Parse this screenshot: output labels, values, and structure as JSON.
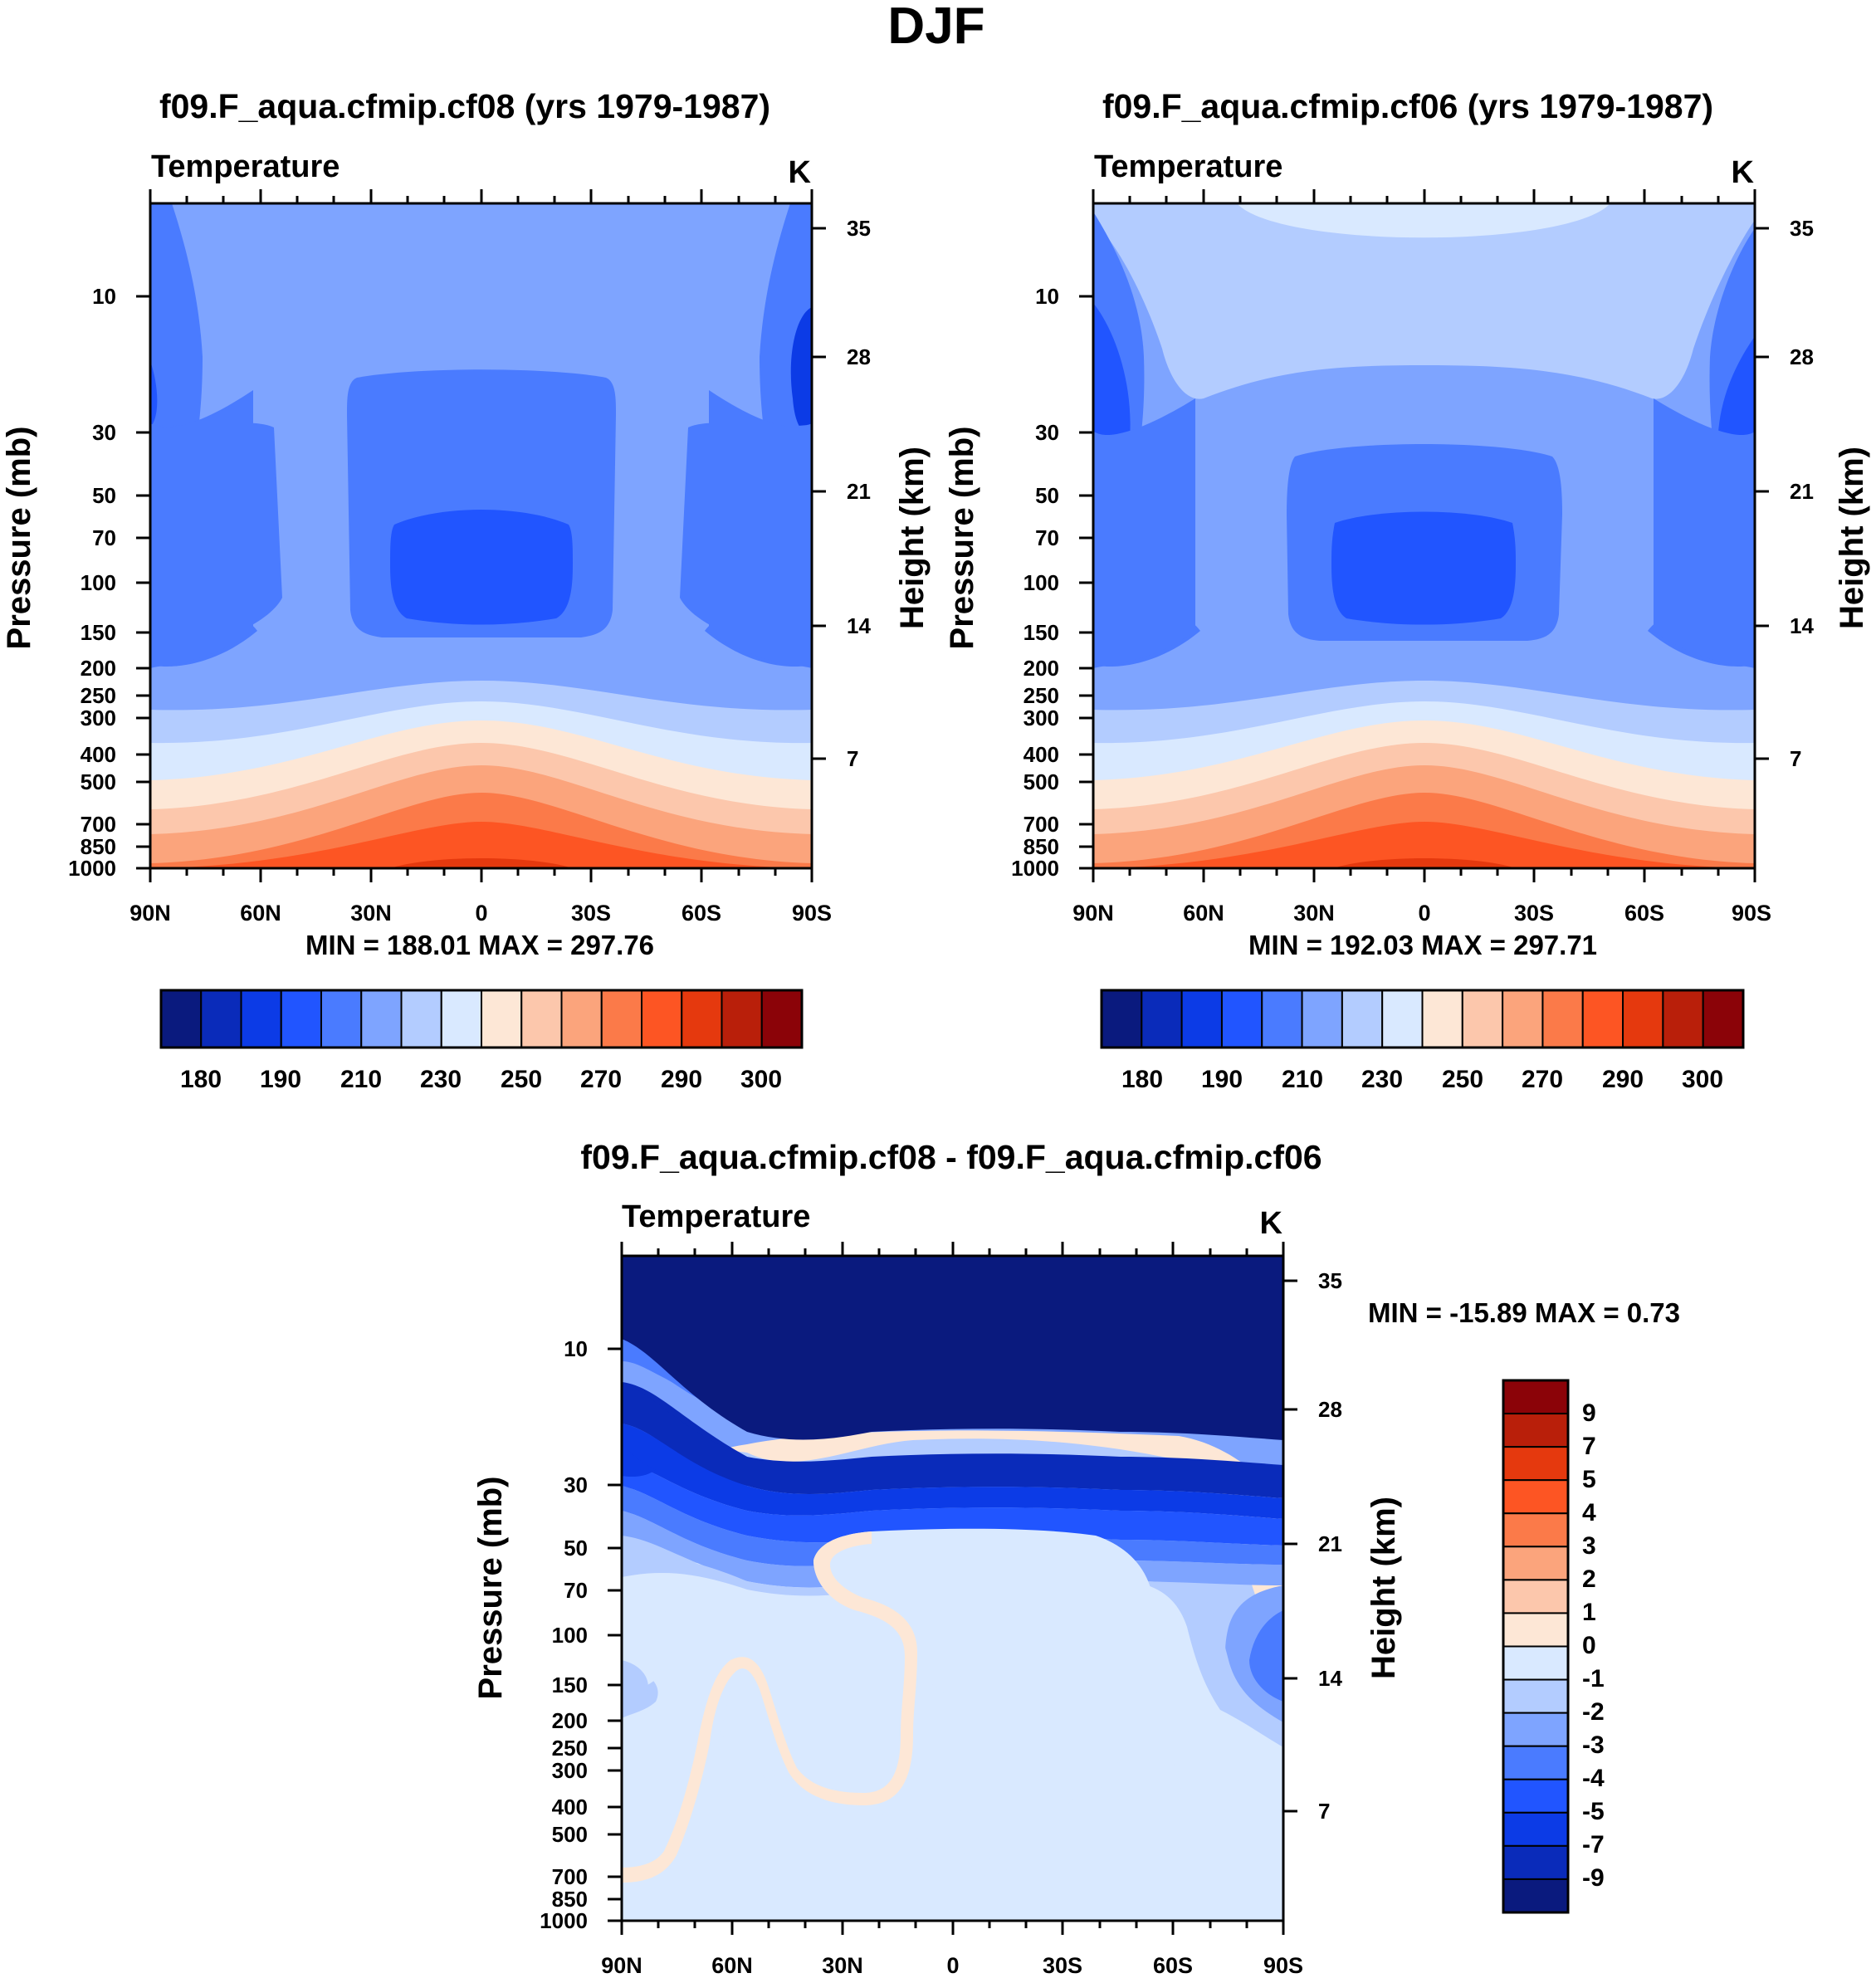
{
  "figure": {
    "title": "DJF"
  },
  "panels": [
    {
      "title": "f09.F_aqua.cfmip.cf08 (yrs 1979-1987)",
      "variable": "Temperature",
      "units": "K",
      "ylabel": "Pressure (mb)",
      "ylabel_right": "Height (km)",
      "minmax": "MIN = 188.01   MAX = 297.76",
      "colorbar_labels": [
        "180",
        "190",
        "210",
        "230",
        "250",
        "270",
        "290",
        "300"
      ]
    },
    {
      "title": "f09.F_aqua.cfmip.cf06 (yrs 1979-1987)",
      "variable": "Temperature",
      "units": "K",
      "ylabel": "Pressure (mb)",
      "ylabel_right": "Height (km)",
      "minmax": "MIN = 192.03   MAX = 297.71",
      "colorbar_labels": [
        "180",
        "190",
        "210",
        "230",
        "250",
        "270",
        "290",
        "300"
      ]
    },
    {
      "title": "f09.F_aqua.cfmip.cf08 - f09.F_aqua.cfmip.cf06",
      "variable": "Temperature",
      "units": "K",
      "ylabel": "Pressure (mb)",
      "ylabel_right": "Height (km)",
      "minmax": "MIN = -15.89   MAX =    0.73",
      "colorbar_labels": [
        "9",
        "7",
        "5",
        "4",
        "3",
        "2",
        "1",
        "0",
        "-1",
        "-2",
        "-3",
        "-4",
        "-5",
        "-7",
        "-9"
      ]
    }
  ],
  "chart_data": [
    {
      "type": "heatmap",
      "title": "f09.F_aqua.cfmip.cf08 (yrs 1979-1987)",
      "variable": "Temperature",
      "units": "K",
      "xlabel": "",
      "ylabel": "Pressure (mb)",
      "ylabel_right": "Height (km)",
      "xticks": [
        "90N",
        "60N",
        "30N",
        "0",
        "30S",
        "60S",
        "90S"
      ],
      "yticks": [
        "10",
        "30",
        "50",
        "70",
        "100",
        "150",
        "200",
        "250",
        "300",
        "400",
        "500",
        "700",
        "850",
        "1000"
      ],
      "yticks_right": [
        "35",
        "28",
        "21",
        "14",
        "7"
      ],
      "xlim": [
        90,
        -90
      ],
      "ylim": [
        1000,
        3.5
      ],
      "min": 188.01,
      "max": 297.76,
      "contour_levels": [
        180,
        185,
        190,
        200,
        210,
        220,
        230,
        240,
        250,
        260,
        270,
        280,
        290,
        295,
        300
      ],
      "colorbar_colors": [
        "#0a1a7e",
        "#0a2bba",
        "#0c3be6",
        "#2155ff",
        "#4a7bff",
        "#7ea4ff",
        "#b3ccff",
        "#d9e9ff",
        "#fde7d6",
        "#fcc7ac",
        "#fba47c",
        "#fb7a49",
        "#fd5523",
        "#e5390e",
        "#b91f0a",
        "#8b0308"
      ]
    },
    {
      "type": "heatmap",
      "title": "f09.F_aqua.cfmip.cf06 (yrs 1979-1987)",
      "variable": "Temperature",
      "units": "K",
      "xlabel": "",
      "ylabel": "Pressure (mb)",
      "ylabel_right": "Height (km)",
      "xticks": [
        "90N",
        "60N",
        "30N",
        "0",
        "30S",
        "60S",
        "90S"
      ],
      "yticks": [
        "10",
        "30",
        "50",
        "70",
        "100",
        "150",
        "200",
        "250",
        "300",
        "400",
        "500",
        "700",
        "850",
        "1000"
      ],
      "yticks_right": [
        "35",
        "28",
        "21",
        "14",
        "7"
      ],
      "xlim": [
        90,
        -90
      ],
      "ylim": [
        1000,
        3.5
      ],
      "min": 192.03,
      "max": 297.71,
      "contour_levels": [
        180,
        185,
        190,
        200,
        210,
        220,
        230,
        240,
        250,
        260,
        270,
        280,
        290,
        295,
        300
      ],
      "colorbar_colors": [
        "#0a1a7e",
        "#0a2bba",
        "#0c3be6",
        "#2155ff",
        "#4a7bff",
        "#7ea4ff",
        "#b3ccff",
        "#d9e9ff",
        "#fde7d6",
        "#fcc7ac",
        "#fba47c",
        "#fb7a49",
        "#fd5523",
        "#e5390e",
        "#b91f0a",
        "#8b0308"
      ]
    },
    {
      "type": "heatmap",
      "title": "f09.F_aqua.cfmip.cf08 - f09.F_aqua.cfmip.cf06",
      "variable": "Temperature",
      "units": "K",
      "xlabel": "",
      "ylabel": "Pressure (mb)",
      "ylabel_right": "Height (km)",
      "xticks": [
        "90N",
        "60N",
        "30N",
        "0",
        "30S",
        "60S",
        "90S"
      ],
      "yticks": [
        "10",
        "30",
        "50",
        "70",
        "100",
        "150",
        "200",
        "250",
        "300",
        "400",
        "500",
        "700",
        "850",
        "1000"
      ],
      "yticks_right": [
        "35",
        "28",
        "21",
        "14",
        "7"
      ],
      "xlim": [
        90,
        -90
      ],
      "ylim": [
        1000,
        3.5
      ],
      "min": -15.89,
      "max": 0.73,
      "contour_levels": [
        -9,
        -7,
        -5,
        -4,
        -3,
        -2,
        -1,
        0,
        1,
        2,
        3,
        4,
        5,
        7,
        9
      ],
      "colorbar_colors": [
        "#8b0308",
        "#b91f0a",
        "#e5390e",
        "#fd5523",
        "#fb7a49",
        "#fba47c",
        "#fcc7ac",
        "#fde7d6",
        "#d9e9ff",
        "#b3ccff",
        "#7ea4ff",
        "#4a7bff",
        "#2155ff",
        "#0c3be6",
        "#0a2bba",
        "#0a1a7e"
      ]
    }
  ]
}
